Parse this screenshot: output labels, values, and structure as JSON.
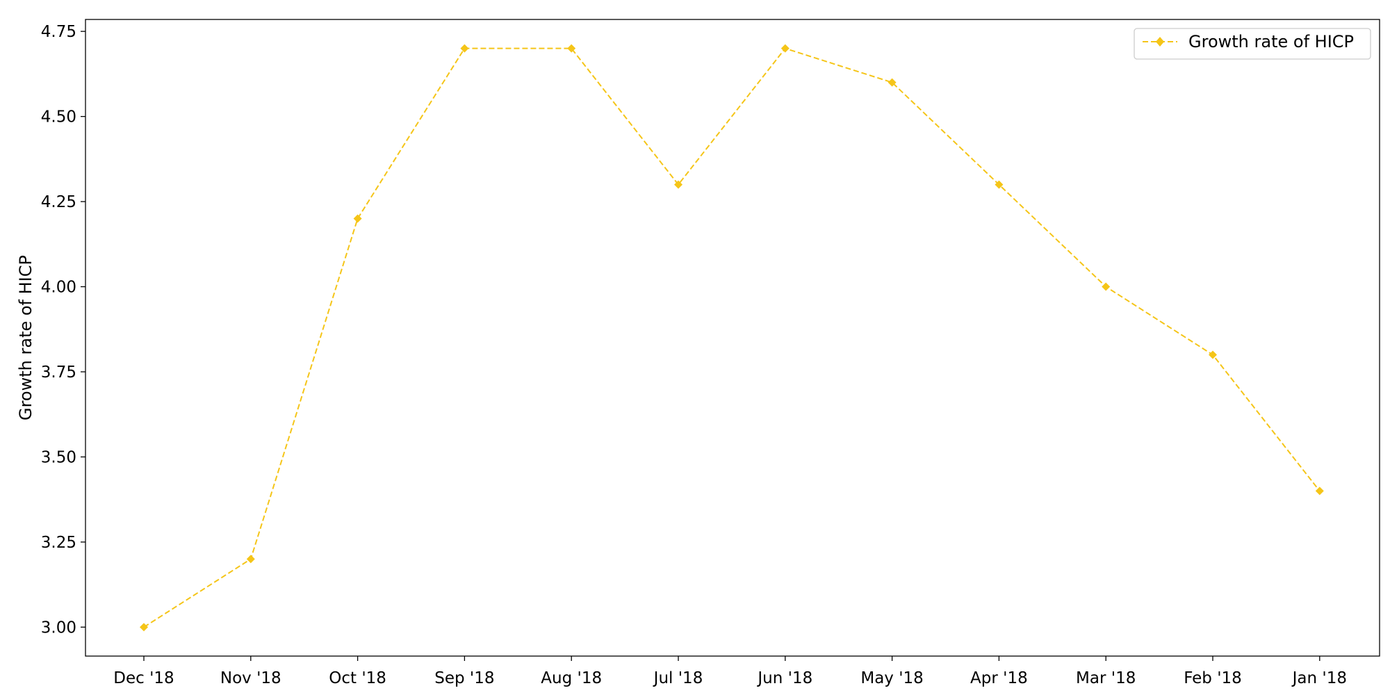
{
  "chart_data": {
    "type": "line",
    "title": "",
    "xlabel": "",
    "ylabel": "Growth rate of HICP",
    "categories": [
      "Dec '18",
      "Nov '18",
      "Oct '18",
      "Sep '18",
      "Aug '18",
      "Jul '18",
      "Jun '18",
      "May '18",
      "Apr '18",
      "Mar '18",
      "Feb '18",
      "Jan '18"
    ],
    "series": [
      {
        "name": "Growth rate of HICP",
        "values": [
          3.0,
          3.2,
          4.2,
          4.7,
          4.7,
          4.3,
          4.7,
          4.6,
          4.3,
          4.0,
          3.8,
          3.4
        ],
        "color": "#F5C518",
        "line_style": "dashed",
        "marker": "diamond"
      }
    ],
    "ylim": [
      2.915,
      4.785
    ],
    "yticks": [
      3.0,
      3.25,
      3.5,
      3.75,
      4.0,
      4.25,
      4.5,
      4.75
    ],
    "ytick_labels": [
      "3.00",
      "3.25",
      "3.50",
      "3.75",
      "4.00",
      "4.25",
      "4.50",
      "4.75"
    ],
    "grid": false,
    "legend": "top-right"
  }
}
